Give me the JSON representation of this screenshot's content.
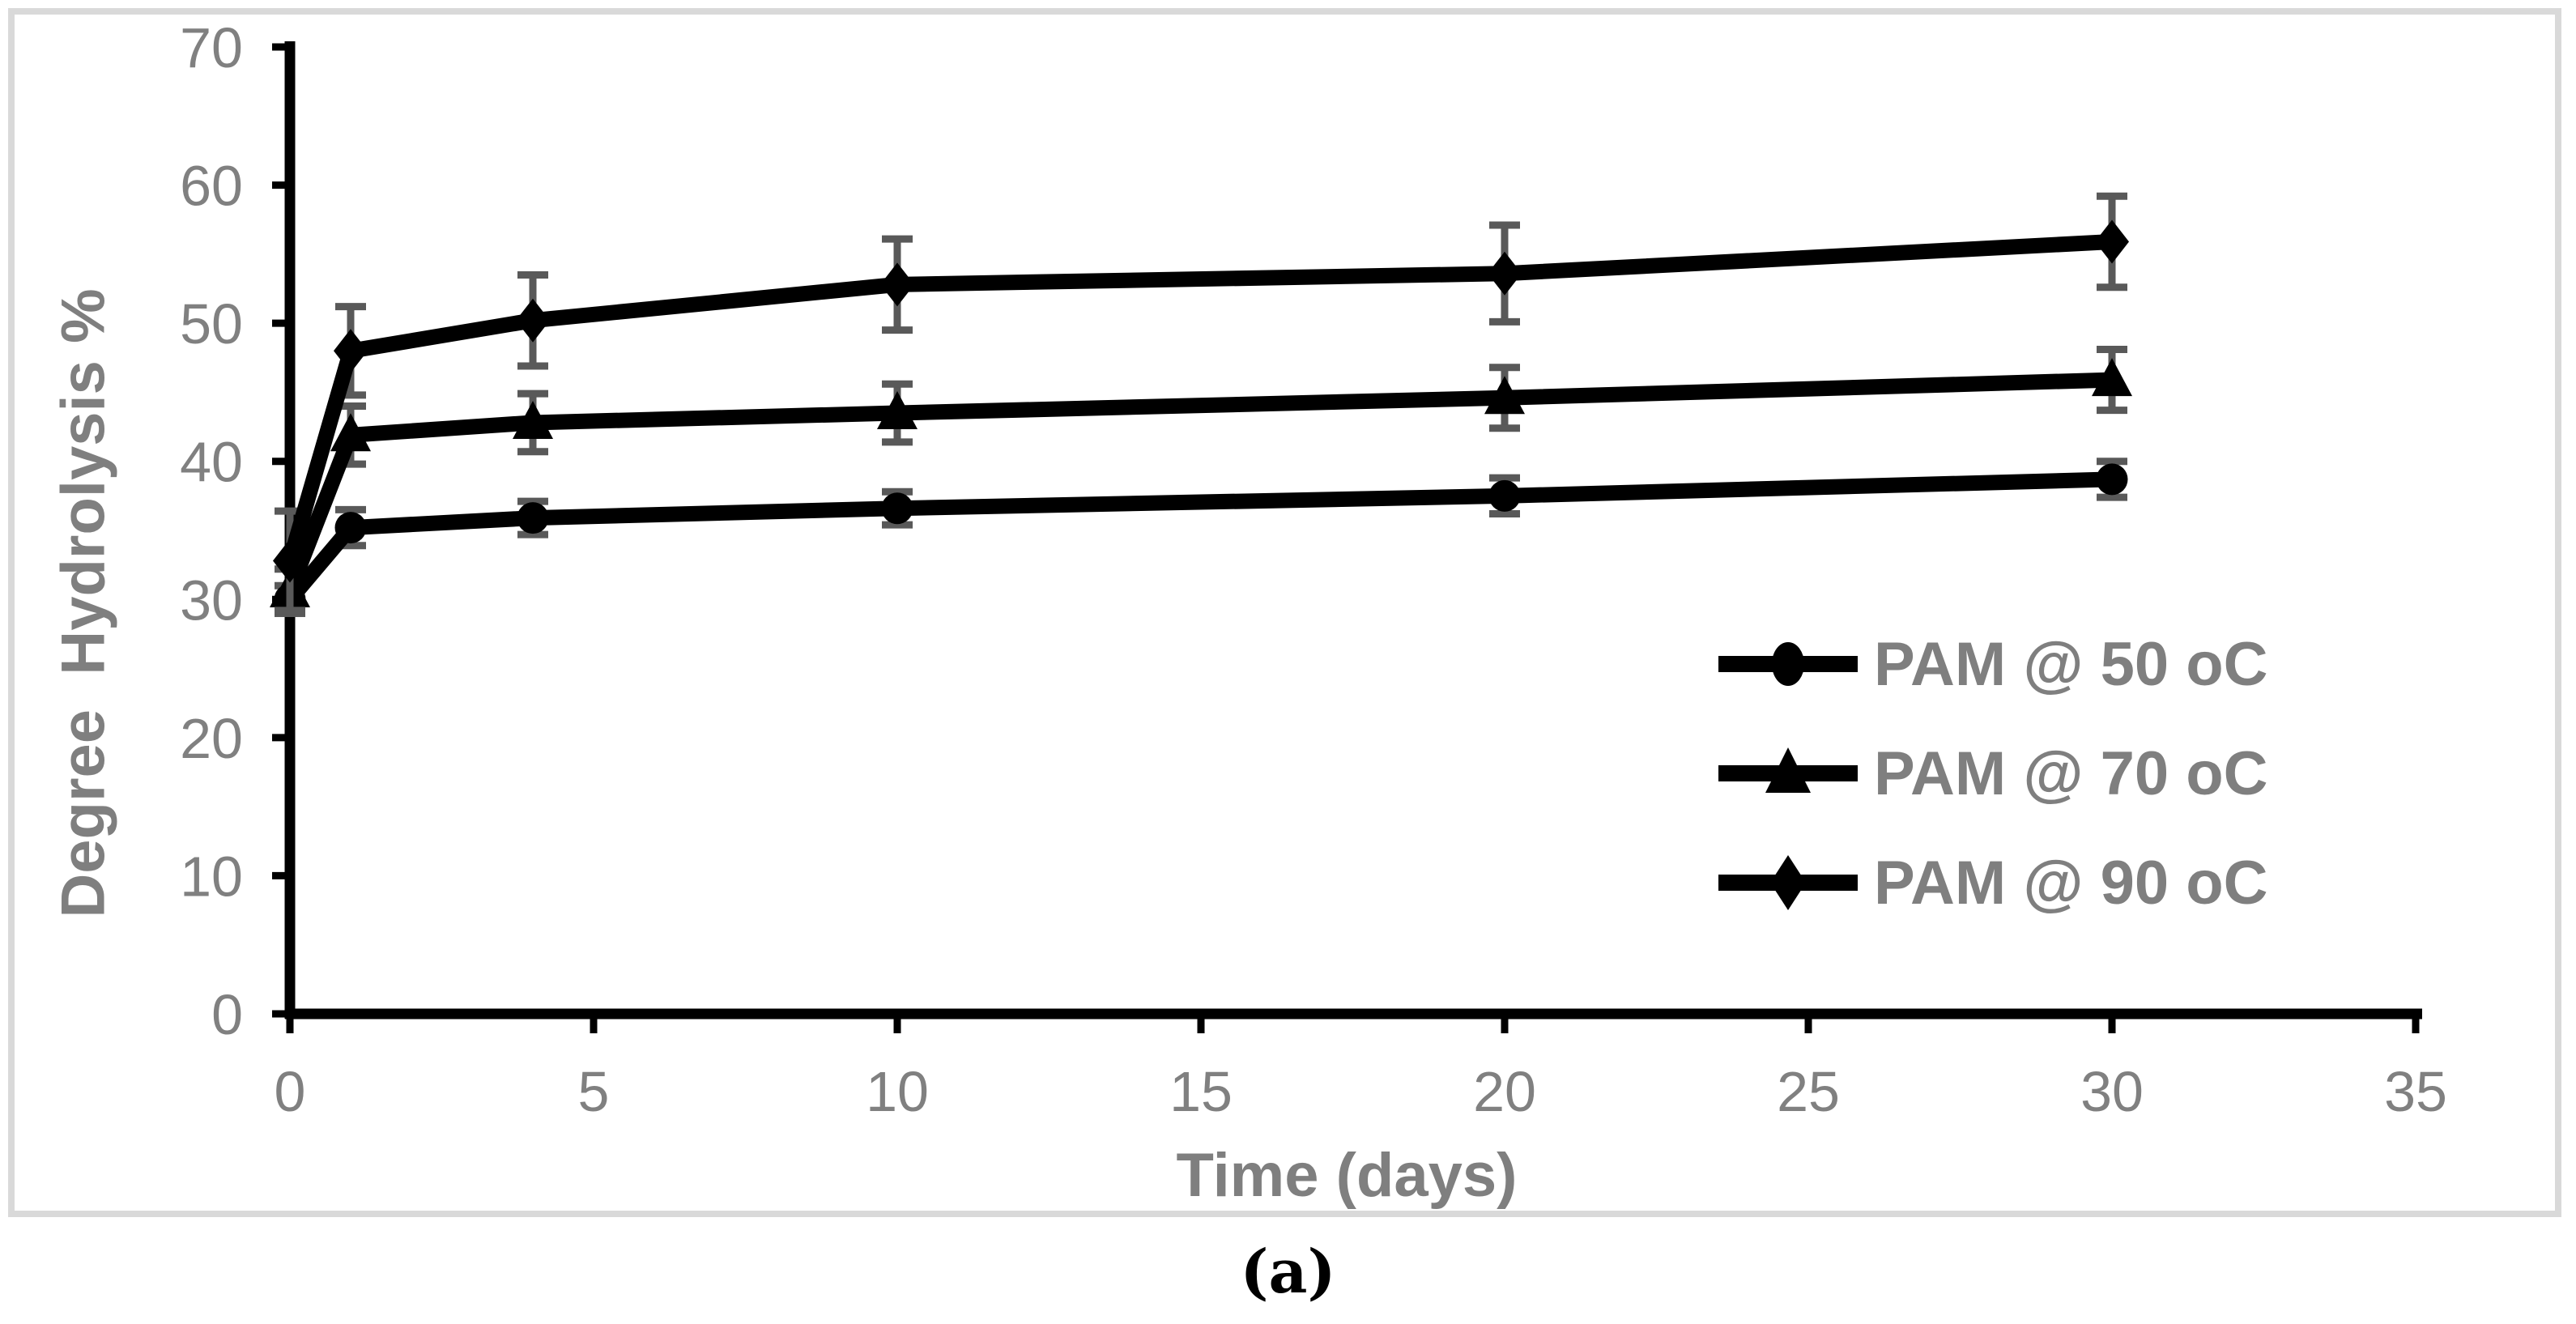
{
  "figure": {
    "caption": "(a)"
  },
  "chart_data": {
    "type": "line",
    "title": "",
    "xlabel": "Time (days)",
    "ylabel": "Degree  Hydrolysis %",
    "x": [
      0,
      1,
      4,
      10,
      20,
      30
    ],
    "xlim": [
      0,
      35
    ],
    "ylim": [
      0,
      70
    ],
    "x_ticks": [
      0,
      5,
      10,
      15,
      20,
      25,
      30,
      35
    ],
    "y_ticks": [
      0,
      10,
      20,
      30,
      40,
      50,
      60,
      70
    ],
    "grid": false,
    "legend_position": "inside-right-middle",
    "series": [
      {
        "name": "PAM @ 50 oC",
        "marker": "circle",
        "values": [
          30.0,
          35.2,
          35.9,
          36.6,
          37.5,
          38.7
        ],
        "yerr": [
          1.0,
          1.3,
          1.2,
          1.2,
          1.3,
          1.3
        ]
      },
      {
        "name": "PAM @ 70 oC",
        "marker": "triangle",
        "values": [
          30.6,
          41.9,
          42.8,
          43.5,
          44.6,
          45.9
        ],
        "yerr": [
          1.6,
          2.1,
          2.1,
          2.1,
          2.2,
          2.2
        ]
      },
      {
        "name": "PAM @ 90 oC",
        "marker": "diamond",
        "values": [
          32.8,
          48.0,
          50.2,
          52.8,
          53.6,
          55.9
        ],
        "yerr": [
          3.6,
          3.2,
          3.3,
          3.3,
          3.5,
          3.3
        ]
      }
    ],
    "colors": {
      "series": "#000000",
      "error_bars": "#595959",
      "tick_labels": "#808080",
      "axis_titles": "#7f7f7f",
      "frame_border": "#d9d9d9"
    }
  }
}
